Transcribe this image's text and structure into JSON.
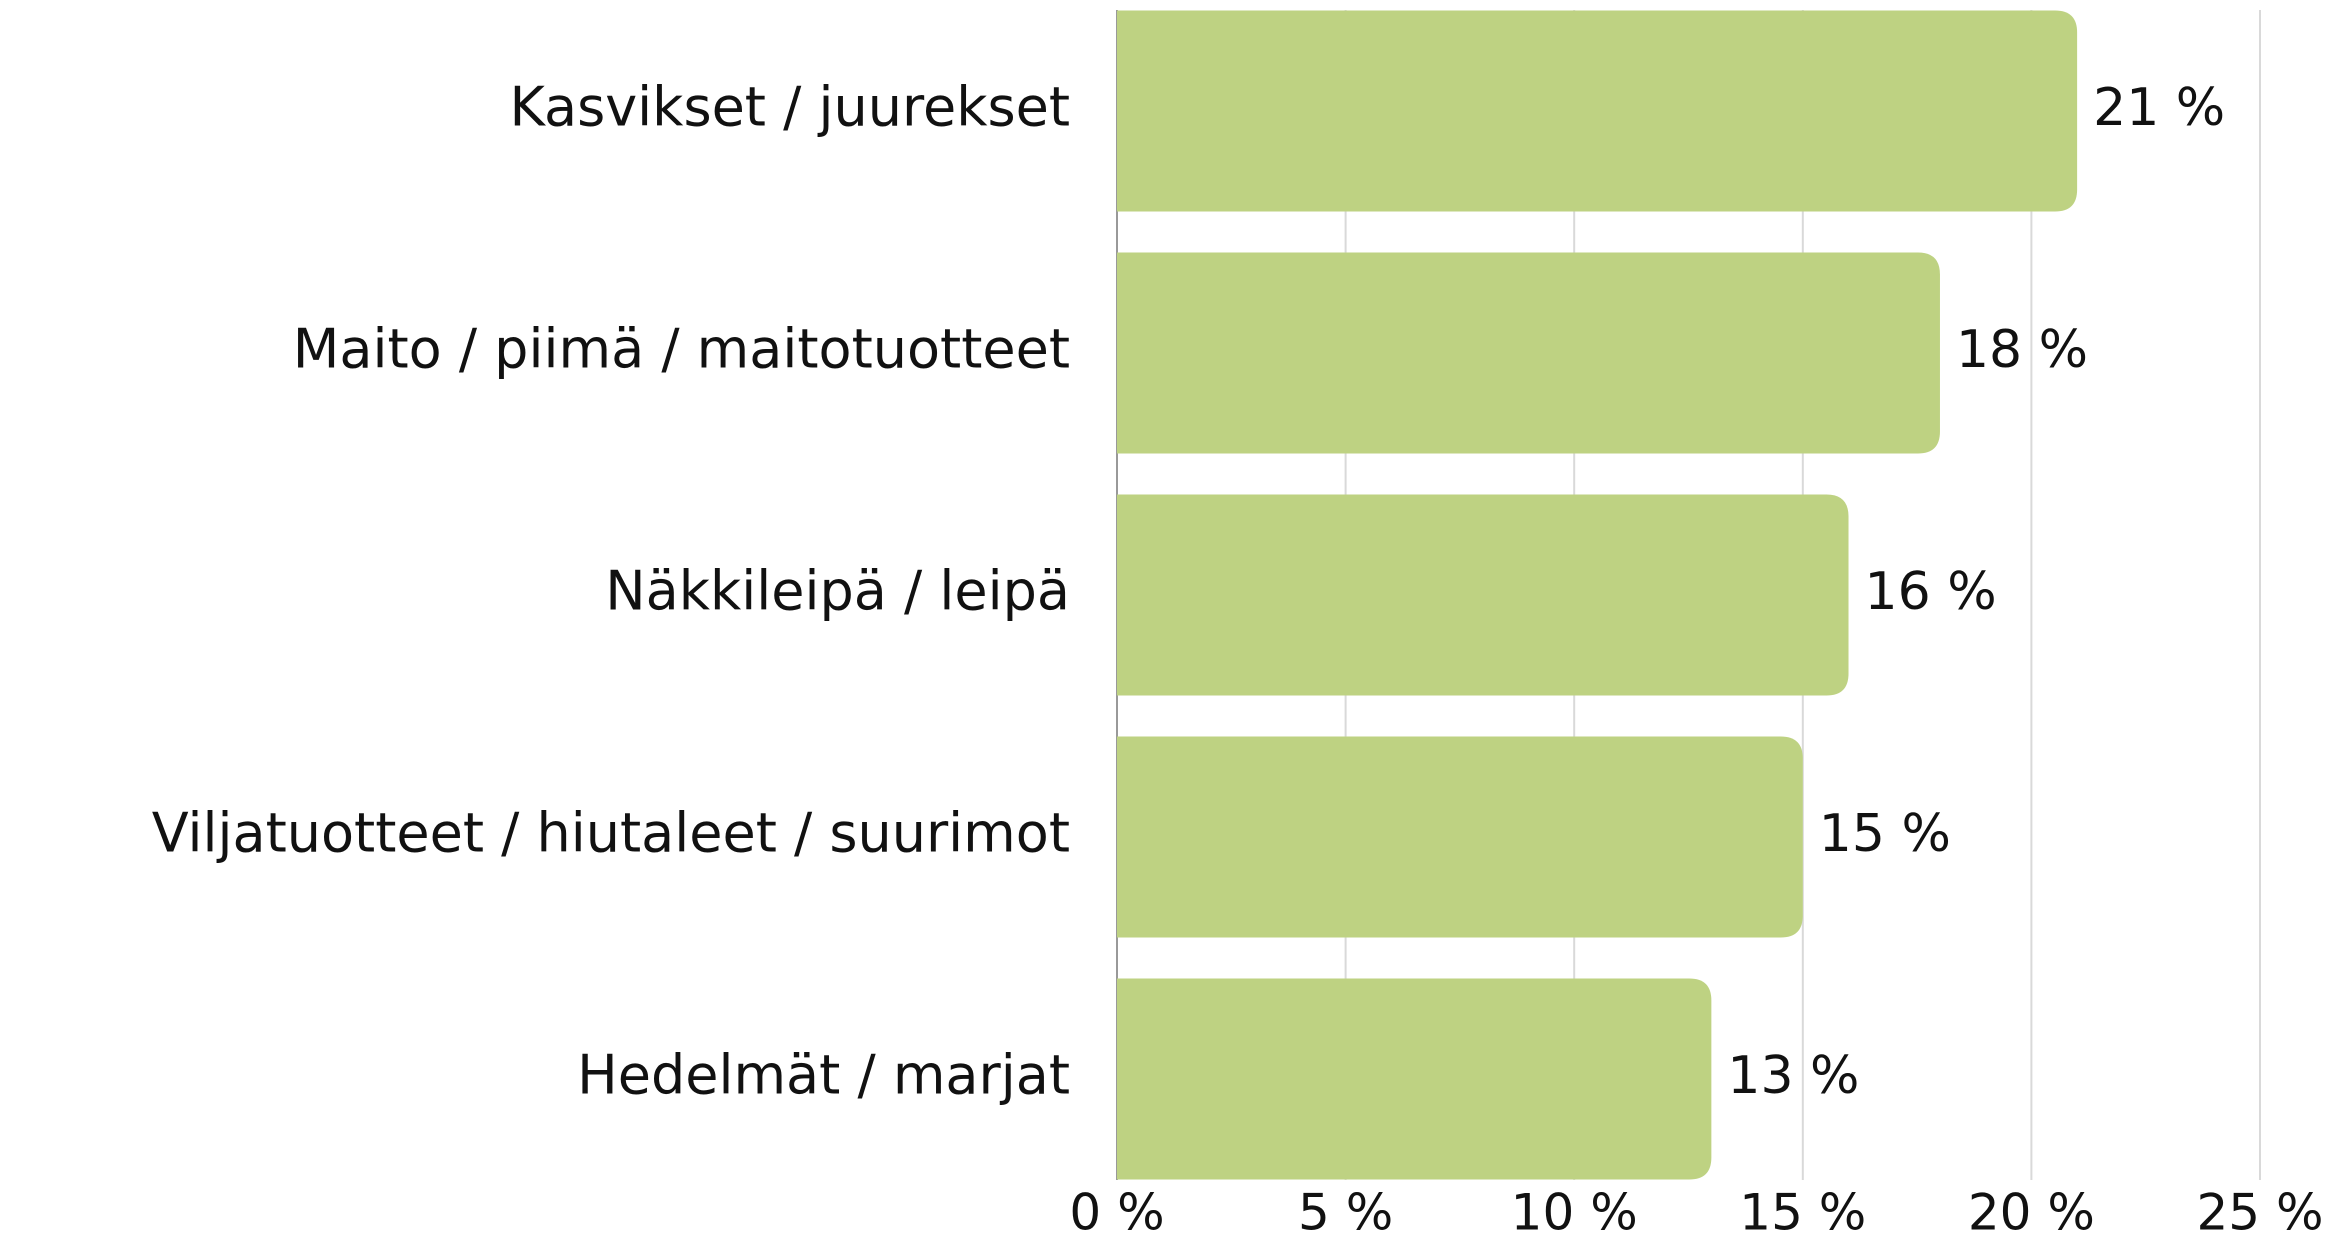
{
  "chart_data": {
    "type": "bar",
    "orientation": "horizontal",
    "categories": [
      "Kasvikset / juurekset",
      "Maito / piimä / maitotuotteet",
      "Näkkileipä / leipä",
      "Viljatuotteet / hiutaleet / suurimot",
      "Hedelmät / marjat"
    ],
    "values": [
      21,
      18,
      16,
      15,
      13
    ],
    "value_labels": [
      "21 %",
      "18 %",
      "16 %",
      "15 %",
      "13 %"
    ],
    "color": "#bed282",
    "xlim": [
      0,
      25
    ],
    "xticks": [
      {
        "value": 0,
        "label": "0 %"
      },
      {
        "value": 5,
        "label": "5 %"
      },
      {
        "value": 10,
        "label": "10 %"
      },
      {
        "value": 15,
        "label": "15 %"
      },
      {
        "value": 20,
        "label": "20 %"
      },
      {
        "value": 25,
        "label": "25 %"
      }
    ],
    "grid": true
  }
}
